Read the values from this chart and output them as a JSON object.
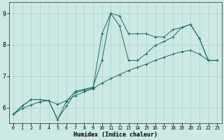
{
  "xlabel": "Humidex (Indice chaleur)",
  "background_color": "#cce8e4",
  "line_color": "#1e6b5e",
  "grid_color": "#aacfca",
  "xlim": [
    -0.5,
    23.5
  ],
  "ylim": [
    5.5,
    9.35
  ],
  "xticks": [
    0,
    1,
    2,
    3,
    4,
    5,
    6,
    7,
    8,
    9,
    10,
    11,
    12,
    13,
    14,
    15,
    16,
    17,
    18,
    19,
    20,
    21,
    22,
    23
  ],
  "yticks": [
    6,
    7,
    8,
    9
  ],
  "line1_x": [
    0,
    1,
    2,
    3,
    4,
    5,
    6,
    7,
    8,
    9,
    10,
    11,
    12,
    13,
    14,
    15,
    16,
    17,
    18,
    19,
    20,
    21,
    22,
    23
  ],
  "line1_y": [
    5.78,
    6.05,
    6.25,
    6.25,
    6.22,
    5.62,
    6.05,
    6.48,
    6.55,
    6.62,
    8.35,
    9.0,
    8.92,
    8.35,
    8.35,
    8.35,
    8.25,
    8.25,
    8.48,
    8.55,
    8.65,
    8.2,
    7.5,
    7.5
  ],
  "line2_x": [
    0,
    1,
    2,
    3,
    4,
    5,
    6,
    7,
    8,
    9,
    10,
    11,
    12,
    13,
    14,
    15,
    16,
    17,
    18,
    19,
    20,
    21,
    22,
    23
  ],
  "line2_y": [
    5.78,
    6.05,
    6.25,
    6.25,
    6.22,
    5.62,
    6.2,
    6.52,
    6.58,
    6.65,
    7.5,
    9.0,
    8.6,
    7.5,
    7.5,
    7.72,
    7.98,
    8.1,
    8.25,
    8.55,
    8.65,
    8.2,
    7.5,
    7.5
  ],
  "line3_x": [
    0,
    1,
    2,
    3,
    4,
    5,
    6,
    7,
    8,
    9,
    10,
    11,
    12,
    13,
    14,
    15,
    16,
    17,
    18,
    19,
    20,
    21,
    22,
    23
  ],
  "line3_y": [
    5.78,
    5.97,
    6.08,
    6.18,
    6.22,
    6.1,
    6.22,
    6.38,
    6.5,
    6.6,
    6.78,
    6.92,
    7.05,
    7.18,
    7.28,
    7.38,
    7.5,
    7.6,
    7.7,
    7.78,
    7.82,
    7.7,
    7.5,
    7.5
  ],
  "figsize": [
    3.2,
    2.0
  ],
  "dpi": 100
}
